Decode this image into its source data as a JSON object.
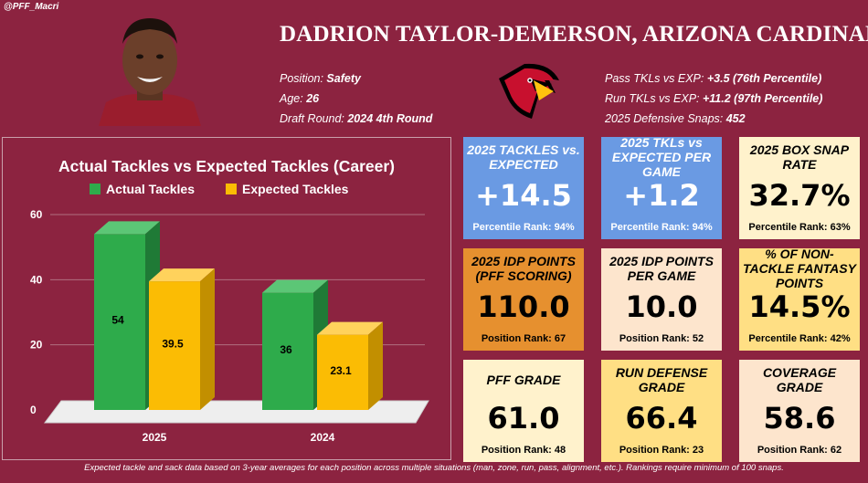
{
  "handle": "@PFF_Macri",
  "player_name": "DADRION TAYLOR-DEMERSON, ARIZONA CARDINALS",
  "bio": [
    {
      "label": "Position: ",
      "value": "Safety"
    },
    {
      "label": "Age: ",
      "value": "26"
    },
    {
      "label": "Draft Round: ",
      "value": "2024 4th Round"
    }
  ],
  "stats": [
    {
      "label": "Pass TKLs vs EXP: ",
      "value": "+3.5 (76th Percentile)"
    },
    {
      "label": "Run TKLs vs EXP: ",
      "value": "+11.2 (97th Percentile)"
    },
    {
      "label": "2025 Defensive Snaps: ",
      "value": "452"
    }
  ],
  "cards": [
    {
      "title": "2025 TACKLES vs. EXPECTED",
      "value": "+14.5",
      "rank": "Percentile Rank: 94%",
      "style": "blue"
    },
    {
      "title": "2025 TKLs vs EXPECTED PER GAME",
      "value": "+1.2",
      "rank": "Percentile Rank: 94%",
      "style": "blue"
    },
    {
      "title": "2025 BOX SNAP RATE",
      "value": "32.7%",
      "rank": "Percentile Rank: 63%",
      "style": "cream"
    },
    {
      "title": "2025 IDP POINTS (PFF SCORING)",
      "value": "110.0",
      "rank": "Position Rank: 67",
      "style": "orange"
    },
    {
      "title": "2025 IDP POINTS PER GAME",
      "value": "10.0",
      "rank": "Position Rank: 52",
      "style": "peach"
    },
    {
      "title": "% OF NON-TACKLE FANTASY POINTS",
      "value": "14.5%",
      "rank": "Percentile Rank: 42%",
      "style": "yellow"
    },
    {
      "title": "PFF GRADE",
      "value": "61.0",
      "rank": "Position Rank: 48",
      "style": "cream"
    },
    {
      "title": "RUN DEFENSE GRADE",
      "value": "66.4",
      "rank": "Position Rank: 23",
      "style": "yellow"
    },
    {
      "title": "COVERAGE GRADE",
      "value": "58.6",
      "rank": "Position Rank: 62",
      "style": "peach"
    }
  ],
  "chart_data": {
    "type": "bar",
    "title": "Actual Tackles vs Expected Tackles (Career)",
    "categories": [
      "2025",
      "2024"
    ],
    "series": [
      {
        "name": "Actual Tackles",
        "values": [
          54,
          36
        ],
        "labels": [
          "54",
          "36"
        ],
        "color": "#2eab4b"
      },
      {
        "name": "Expected Tackles",
        "values": [
          39.5,
          23.1
        ],
        "labels": [
          "39.5",
          "23.1"
        ],
        "color": "#fbbc04"
      }
    ],
    "yticks": [
      0,
      20,
      40,
      60
    ],
    "ylim": [
      0,
      60
    ],
    "legend": "top",
    "grid": true
  },
  "colors": {
    "background": "#8c2340",
    "actual": "#2eab4b",
    "expected": "#fbbc04"
  },
  "footnote": "Expected tackle and sack data based on 3-year averages for each position across multiple situations (man, zone, run, pass, alignment, etc.). Rankings require minimum of 100 snaps."
}
